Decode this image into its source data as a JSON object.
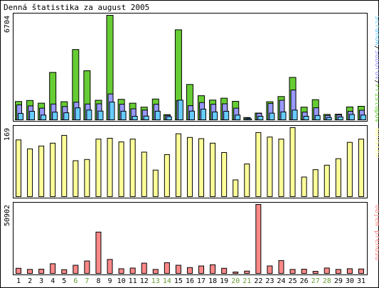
{
  "title": "Denná štatistika za august 2005",
  "colors": {
    "hits": "#66cc33",
    "files": "#9999ff",
    "pages": "#66ccff",
    "visits": "#ffff99",
    "volume": "#ff8888",
    "weekend": "#669933",
    "weekday": "#000000",
    "frame": "#000000",
    "background": "#ffffff"
  },
  "chart_data": [
    {
      "type": "bar",
      "name": "hits-pages-files",
      "ymax_label": "6704",
      "ylim": [
        0,
        6704
      ],
      "legend_parts": [
        {
          "text": "Stránok",
          "color_key": "pages"
        },
        {
          "text": "/",
          "color_key": "weekday"
        },
        {
          "text": "Súborov",
          "color_key": "files"
        },
        {
          "text": "/",
          "color_key": "weekday"
        },
        {
          "text": "Prístupov",
          "color_key": "hits"
        }
      ],
      "series": [
        {
          "key": "hits",
          "values": [
            1173,
            1240,
            1067,
            3040,
            1160,
            4507,
            3147,
            1253,
            6704,
            1313,
            1067,
            813,
            1333,
            333,
            5773,
            2267,
            1547,
            1267,
            1387,
            1187,
            147,
            433,
            1160,
            1493,
            2720,
            813,
            1293,
            347,
            360,
            827,
            867
          ]
        },
        {
          "key": "files",
          "values": [
            960,
            893,
            747,
            1013,
            853,
            1133,
            1013,
            1027,
            1660,
            1000,
            707,
            627,
            1000,
            280,
            1240,
            907,
            1107,
            1000,
            1027,
            747,
            120,
            413,
            1053,
            1253,
            1913,
            493,
            773,
            280,
            313,
            547,
            613
          ]
        },
        {
          "key": "pages",
          "values": [
            413,
            547,
            307,
            493,
            453,
            767,
            627,
            560,
            1140,
            553,
            227,
            240,
            553,
            200,
            1260,
            560,
            687,
            507,
            547,
            307,
            67,
            227,
            427,
            507,
            627,
            227,
            280,
            147,
            187,
            347,
            307
          ]
        }
      ]
    },
    {
      "type": "bar",
      "name": "visits",
      "ymax_label": "169",
      "ylim": [
        0,
        169
      ],
      "legend_parts": [
        {
          "text": "Návštev",
          "color_key": "visits"
        }
      ],
      "series": [
        {
          "key": "visits",
          "values": [
            139,
            117,
            124,
            131,
            150,
            88,
            91,
            141,
            143,
            134,
            141,
            109,
            65,
            103,
            154,
            145,
            142,
            131,
            108,
            41,
            80,
            157,
            146,
            141,
            169,
            48,
            66,
            77,
            93,
            133,
            141
          ]
        }
      ]
    },
    {
      "type": "bar",
      "name": "volume",
      "ymax_label": "50902",
      "ylim": [
        0,
        50902
      ],
      "legend_parts": [
        {
          "text": "Objem prenosu",
          "color_key": "volume"
        }
      ],
      "series": [
        {
          "key": "volume",
          "values": [
            3790,
            2940,
            3110,
            7150,
            2770,
            6030,
            9190,
            30510,
            10310,
            3440,
            3960,
            7580,
            2940,
            7930,
            6030,
            4310,
            5500,
            6380,
            3790,
            1030,
            1720,
            50902,
            5520,
            9490,
            2940,
            3110,
            1550,
            3970,
            2940,
            3450,
            3280
          ]
        }
      ]
    }
  ],
  "days": [
    {
      "label": "1",
      "weekend": false
    },
    {
      "label": "2",
      "weekend": false
    },
    {
      "label": "3",
      "weekend": false
    },
    {
      "label": "4",
      "weekend": false
    },
    {
      "label": "5",
      "weekend": false
    },
    {
      "label": "6",
      "weekend": true
    },
    {
      "label": "7",
      "weekend": true
    },
    {
      "label": "8",
      "weekend": false
    },
    {
      "label": "9",
      "weekend": false
    },
    {
      "label": "10",
      "weekend": false
    },
    {
      "label": "11",
      "weekend": false
    },
    {
      "label": "12",
      "weekend": false
    },
    {
      "label": "13",
      "weekend": true
    },
    {
      "label": "14",
      "weekend": true
    },
    {
      "label": "15",
      "weekend": false
    },
    {
      "label": "16",
      "weekend": false
    },
    {
      "label": "17",
      "weekend": false
    },
    {
      "label": "18",
      "weekend": false
    },
    {
      "label": "19",
      "weekend": false
    },
    {
      "label": "20",
      "weekend": true
    },
    {
      "label": "21",
      "weekend": true
    },
    {
      "label": "22",
      "weekend": false
    },
    {
      "label": "23",
      "weekend": false
    },
    {
      "label": "24",
      "weekend": false
    },
    {
      "label": "25",
      "weekend": false
    },
    {
      "label": "26",
      "weekend": false
    },
    {
      "label": "27",
      "weekend": true
    },
    {
      "label": "28",
      "weekend": true
    },
    {
      "label": "29",
      "weekend": false
    },
    {
      "label": "30",
      "weekend": false
    },
    {
      "label": "31",
      "weekend": false
    }
  ]
}
